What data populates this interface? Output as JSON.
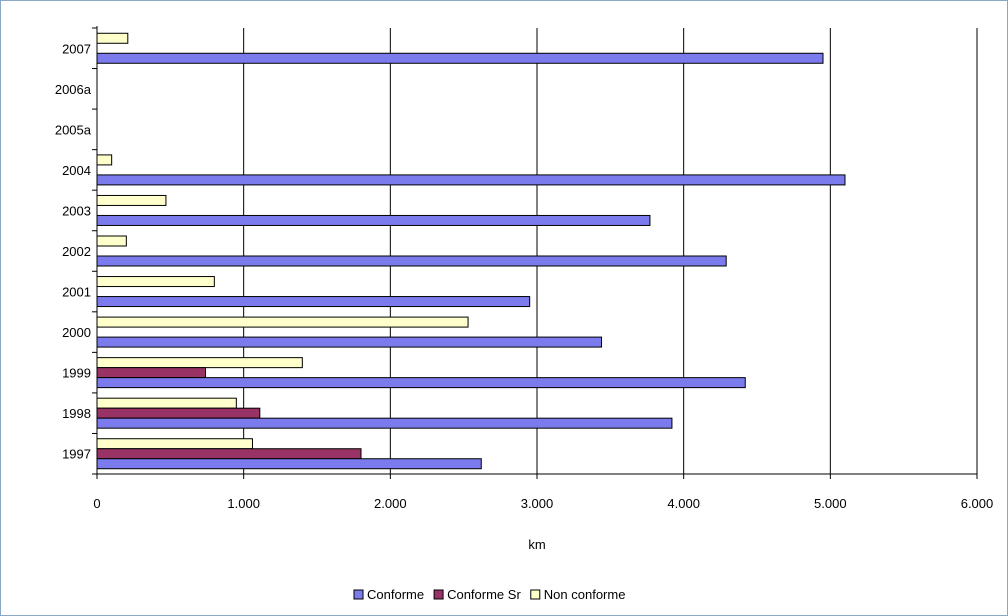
{
  "chart_data": {
    "type": "bar",
    "orientation": "horizontal",
    "title": "",
    "xlabel": "km",
    "ylabel": "",
    "xlim": [
      0,
      6000
    ],
    "x_ticks": [
      0,
      1000,
      2000,
      3000,
      4000,
      5000,
      6000
    ],
    "x_tick_labels": [
      "0",
      "1.000",
      "2.000",
      "3.000",
      "4.000",
      "5.000",
      "6.000"
    ],
    "categories": [
      "1997",
      "1998",
      "1999",
      "2000",
      "2001",
      "2002",
      "2003",
      "2004",
      "2005a",
      "2006a",
      "2007"
    ],
    "series": [
      {
        "name": "Conforme",
        "color": "#7b7bee",
        "values": [
          2620,
          3920,
          4420,
          3440,
          2950,
          4290,
          3770,
          5100,
          null,
          null,
          4950
        ]
      },
      {
        "name": "Conforme Sr",
        "color": "#993366",
        "values": [
          1800,
          1110,
          740,
          null,
          null,
          null,
          null,
          null,
          null,
          null,
          null
        ]
      },
      {
        "name": "Non conforme",
        "color": "#ffffcc",
        "values": [
          1060,
          950,
          1400,
          2530,
          800,
          200,
          470,
          100,
          null,
          null,
          210
        ]
      }
    ],
    "grid": "vertical",
    "legend_position": "bottom"
  }
}
